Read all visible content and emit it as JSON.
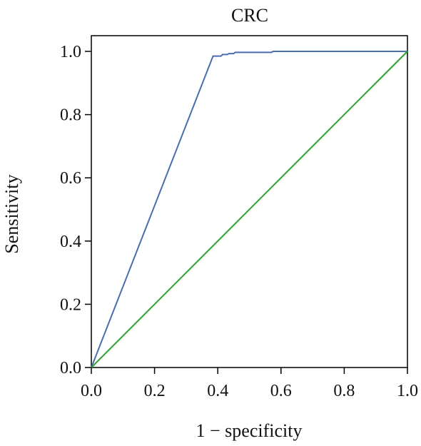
{
  "chart_data": {
    "type": "line",
    "title": "CRC",
    "xlabel": "1 − specificity",
    "ylabel": "Sensitivity",
    "xlim": [
      0.0,
      1.0
    ],
    "ylim": [
      0.0,
      1.0
    ],
    "xticks": [
      "0.0",
      "0.2",
      "0.4",
      "0.6",
      "0.8",
      "1.0"
    ],
    "yticks": [
      "0.0",
      "0.2",
      "0.4",
      "0.6",
      "0.8",
      "1.0"
    ],
    "grid": false,
    "series": [
      {
        "color": "#4a6db0",
        "points": [
          [
            0.0,
            0.0
          ],
          [
            0.385,
            0.985
          ],
          [
            0.41,
            0.985
          ],
          [
            0.415,
            0.99
          ],
          [
            0.43,
            0.99
          ],
          [
            0.435,
            0.993
          ],
          [
            0.45,
            0.993
          ],
          [
            0.455,
            0.997
          ],
          [
            0.57,
            0.997
          ],
          [
            0.575,
            1.0
          ],
          [
            1.0,
            1.0
          ]
        ]
      },
      {
        "color": "#2ca02c",
        "points": [
          [
            0.0,
            0.0
          ],
          [
            1.0,
            1.0
          ]
        ]
      }
    ]
  }
}
